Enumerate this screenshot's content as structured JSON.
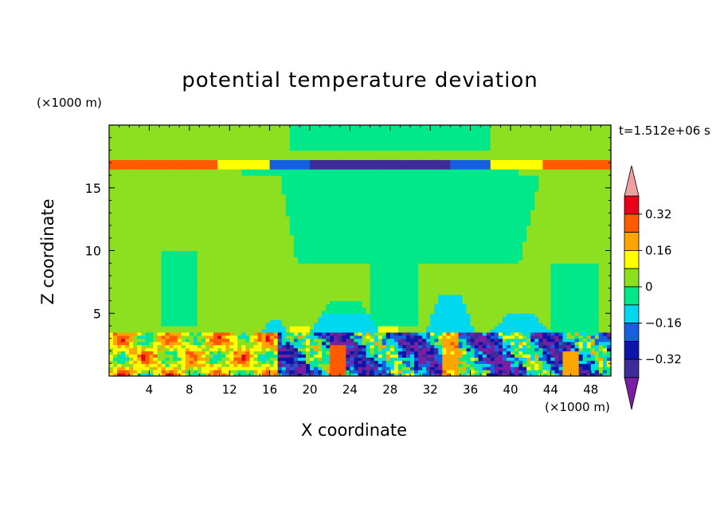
{
  "chart_data": {
    "type": "heatmap",
    "title": "potential temperature deviation",
    "xlabel": "X coordinate",
    "ylabel": "Z coordinate",
    "x_unit": "(×1000 m)",
    "y_unit": "(×1000 m)",
    "time_label": "t=1.512e+06 s",
    "xlim": [
      0,
      50
    ],
    "ylim": [
      0,
      20
    ],
    "x_ticks": [
      4,
      8,
      12,
      16,
      20,
      24,
      28,
      32,
      36,
      40,
      44,
      48
    ],
    "y_ticks": [
      5,
      10,
      15
    ],
    "colorbar": {
      "levels": [
        -0.48,
        -0.4,
        -0.32,
        -0.24,
        -0.16,
        -0.08,
        0,
        0.08,
        0.16,
        0.24,
        0.32,
        0.4
      ],
      "labels": [
        "0.32",
        "0.16",
        "0",
        "−0.16",
        "−0.32"
      ],
      "label_values": [
        0.32,
        0.16,
        0,
        -0.16,
        -0.32
      ],
      "colors": [
        "#7a1fa2",
        "#3f2b9a",
        "#0d14a8",
        "#1560e0",
        "#00d8f0",
        "#00e88a",
        "#8ce020",
        "#ffff00",
        "#ffa500",
        "#ff5a00",
        "#e8001a",
        "#f0a0a0"
      ]
    },
    "features": [
      {
        "region": "tropopause band",
        "z": 16.8,
        "x_range": [
          0,
          50
        ],
        "west_east_values": [
          0.32,
          0.24
        ],
        "center_values": [
          -0.4,
          -0.24
        ]
      },
      {
        "region": "boundary layer",
        "z_range": [
          0,
          3.5
        ],
        "values": "mixed -0.48 to 0.48"
      },
      {
        "region": "mid troposphere",
        "z_range": [
          3.5,
          16
        ],
        "values": "0 to 0.08 with -0.08 plumes near x=20-38"
      }
    ]
  }
}
